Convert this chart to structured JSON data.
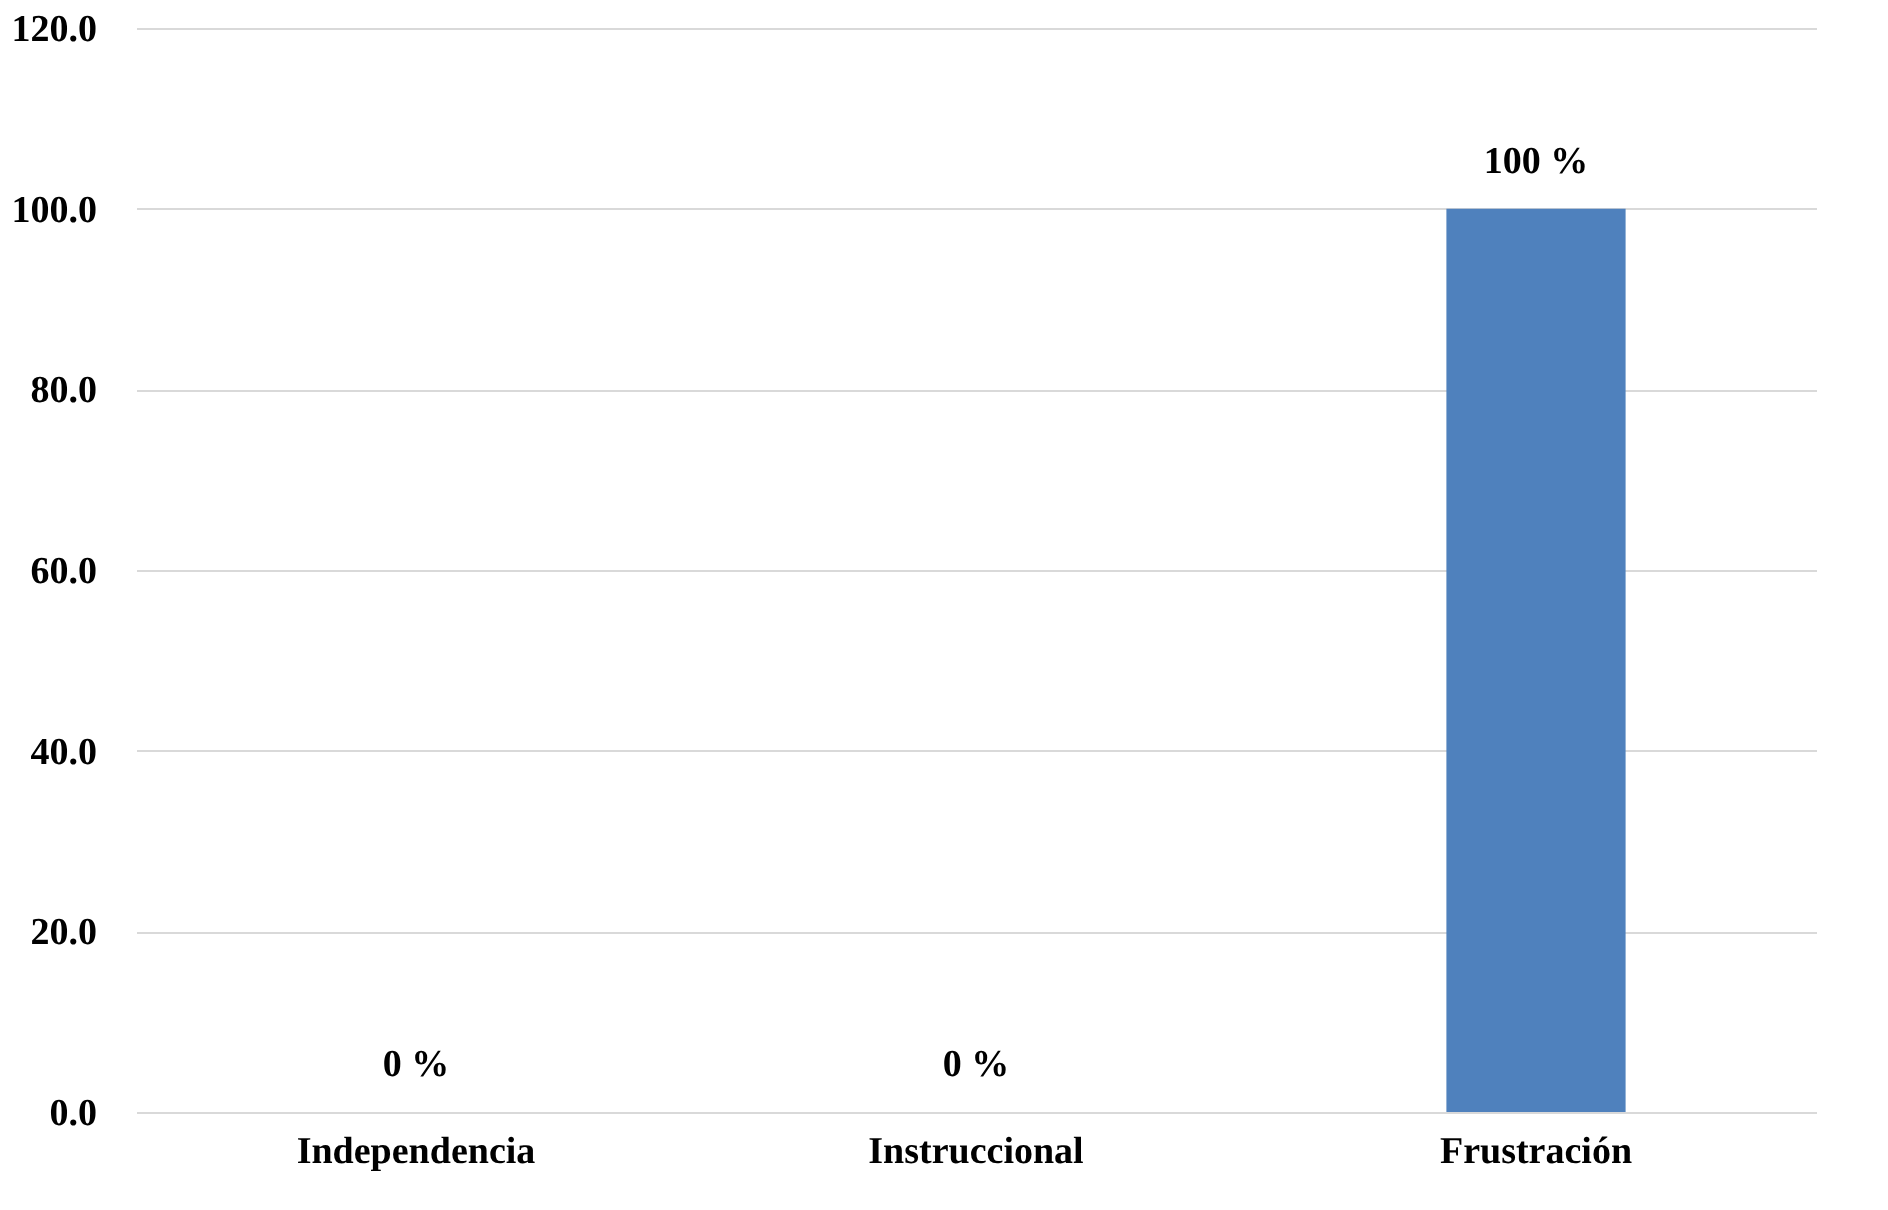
{
  "chart_data": {
    "type": "bar",
    "categories": [
      "Independencia",
      "Instruccional",
      "Frustración"
    ],
    "values": [
      0,
      0,
      100
    ],
    "value_labels": [
      "0 %",
      "0 %",
      "100 %"
    ],
    "color": "#4f81bd",
    "ylim": [
      0,
      120
    ],
    "yticks": [
      {
        "value": 0,
        "label": "0.0"
      },
      {
        "value": 20,
        "label": "20.0"
      },
      {
        "value": 40,
        "label": "40.0"
      },
      {
        "value": 60,
        "label": "60.0"
      },
      {
        "value": 80,
        "label": "80.0"
      },
      {
        "value": 100,
        "label": "100.0"
      },
      {
        "value": 120,
        "label": "120.0"
      }
    ],
    "grid": "y"
  }
}
